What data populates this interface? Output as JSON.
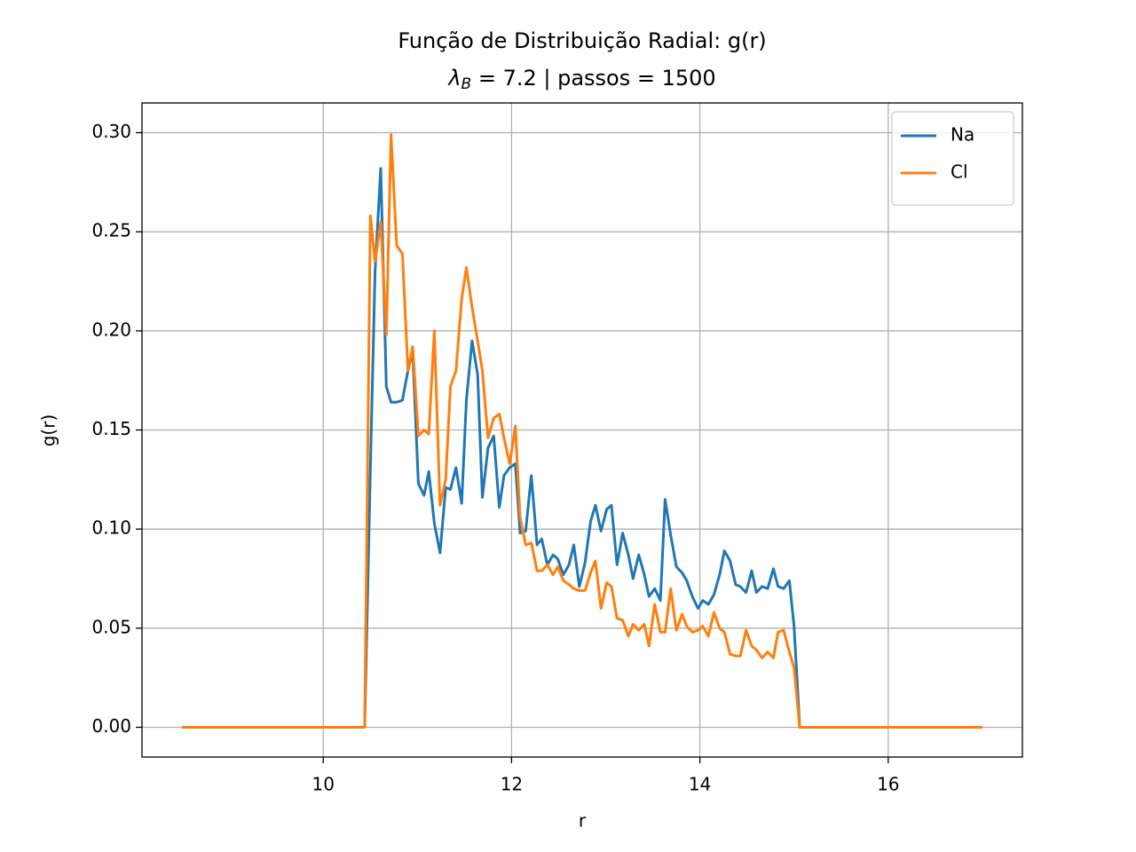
{
  "chart_data": {
    "type": "line",
    "title": "Função de Distribuição Radial: g(r)",
    "subtitle": {
      "symbol": "λ",
      "subscript": "B",
      "text": " = 7.2 | passos = 1500"
    },
    "xlabel": "r",
    "ylabel": "g(r)",
    "x": [
      8.5,
      10.44,
      10.5,
      10.55,
      10.61,
      10.67,
      10.72,
      10.78,
      10.84,
      10.9,
      10.95,
      11.01,
      11.07,
      11.12,
      11.18,
      11.24,
      11.3,
      11.35,
      11.41,
      11.47,
      11.52,
      11.58,
      11.64,
      11.69,
      11.75,
      11.81,
      11.87,
      11.92,
      11.98,
      12.04,
      12.09,
      12.15,
      12.21,
      12.27,
      12.32,
      12.38,
      12.44,
      12.49,
      12.55,
      12.61,
      12.66,
      12.72,
      12.78,
      12.84,
      12.89,
      12.95,
      13.01,
      13.06,
      13.12,
      13.18,
      13.24,
      13.29,
      13.35,
      13.41,
      13.46,
      13.52,
      13.58,
      13.63,
      13.69,
      13.75,
      13.81,
      13.86,
      13.92,
      13.98,
      14.03,
      14.09,
      14.15,
      14.21,
      14.26,
      14.32,
      14.38,
      14.43,
      14.49,
      14.55,
      14.6,
      14.66,
      14.72,
      14.78,
      14.83,
      14.89,
      14.95,
      15.0,
      15.06,
      17.0
    ],
    "series": [
      {
        "name": "Na",
        "color": "#1f77b4",
        "values": [
          0,
          0,
          0.13,
          0.23,
          0.282,
          0.172,
          0.164,
          0.164,
          0.165,
          0.18,
          0.19,
          0.123,
          0.117,
          0.129,
          0.103,
          0.088,
          0.121,
          0.12,
          0.131,
          0.113,
          0.165,
          0.195,
          0.178,
          0.116,
          0.141,
          0.147,
          0.111,
          0.127,
          0.131,
          0.133,
          0.098,
          0.099,
          0.127,
          0.092,
          0.095,
          0.082,
          0.087,
          0.085,
          0.077,
          0.082,
          0.092,
          0.071,
          0.083,
          0.104,
          0.112,
          0.099,
          0.11,
          0.112,
          0.082,
          0.098,
          0.087,
          0.075,
          0.087,
          0.077,
          0.066,
          0.07,
          0.064,
          0.115,
          0.097,
          0.081,
          0.078,
          0.074,
          0.066,
          0.06,
          0.064,
          0.062,
          0.067,
          0.077,
          0.089,
          0.084,
          0.072,
          0.071,
          0.068,
          0.079,
          0.068,
          0.071,
          0.07,
          0.08,
          0.071,
          0.07,
          0.074,
          0.051,
          0,
          0
        ]
      },
      {
        "name": "Cl",
        "color": "#ff7f0e",
        "values": [
          0,
          0,
          0.258,
          0.235,
          0.255,
          0.198,
          0.299,
          0.243,
          0.239,
          0.18,
          0.192,
          0.147,
          0.15,
          0.148,
          0.2,
          0.112,
          0.125,
          0.172,
          0.18,
          0.216,
          0.232,
          0.212,
          0.195,
          0.18,
          0.146,
          0.156,
          0.158,
          0.146,
          0.133,
          0.152,
          0.106,
          0.092,
          0.093,
          0.079,
          0.079,
          0.082,
          0.077,
          0.081,
          0.074,
          0.072,
          0.07,
          0.069,
          0.069,
          0.078,
          0.084,
          0.06,
          0.073,
          0.071,
          0.055,
          0.054,
          0.046,
          0.052,
          0.049,
          0.052,
          0.041,
          0.062,
          0.048,
          0.048,
          0.07,
          0.049,
          0.057,
          0.051,
          0.048,
          0.049,
          0.051,
          0.046,
          0.058,
          0.05,
          0.048,
          0.037,
          0.036,
          0.036,
          0.049,
          0.041,
          0.039,
          0.035,
          0.038,
          0.035,
          0.048,
          0.049,
          0.038,
          0.03,
          0,
          0
        ]
      }
    ],
    "xlim": [
      8.075,
      17.425
    ],
    "xticks": [
      10,
      12,
      14,
      16
    ],
    "ylim": [
      -0.015,
      0.315
    ],
    "yticks": [
      {
        "value": 0,
        "label": "0.00"
      },
      {
        "value": 0.05,
        "label": "0.05"
      },
      {
        "value": 0.1,
        "label": "0.10"
      },
      {
        "value": 0.15,
        "label": "0.15"
      },
      {
        "value": 0.2,
        "label": "0.20"
      },
      {
        "value": 0.25,
        "label": "0.25"
      },
      {
        "value": 0.3,
        "label": "0.30"
      }
    ],
    "grid": true,
    "legend": "upper right"
  }
}
